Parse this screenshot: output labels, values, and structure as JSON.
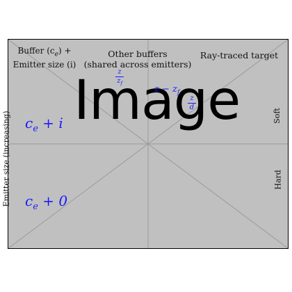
{
  "placeholder": {
    "text": "Image",
    "background": "#c0c0c0",
    "line_color": "#9a9a9a"
  },
  "column_labels": {
    "buffer": "Buffer (c",
    "buffer_sub": "e",
    "buffer_tail": ") +",
    "buffer_line2": "Emitter size (i)",
    "other_line1": "Other buffers",
    "other_line2": "(shared across emitters)",
    "ray_traced": "Ray-traced target"
  },
  "axis_labels": {
    "left": "Emitter size (increasing)",
    "right_top": "Soft",
    "right_bottom": "Hard"
  },
  "math": {
    "ce_i": "c",
    "ce_i_sub": "e",
    "ce_i_tail": " + i",
    "ce_0": "c",
    "ce_0_sub": "e",
    "ce_0_tail": " + 0",
    "z_diff": "z − z",
    "z_diff_sub": "f",
    "frac1_num": "z",
    "frac1_den": "z",
    "frac1_den_sub": "f",
    "frac2_num": "z",
    "frac2_den": "d"
  },
  "colors": {
    "math": "#1a1aff",
    "text": "#111111"
  }
}
